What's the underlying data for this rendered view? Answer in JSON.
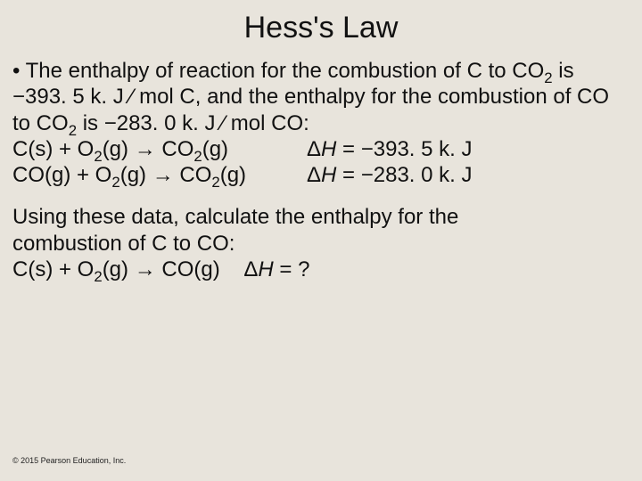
{
  "background_color": "#e8e4dc",
  "text_color": "#111111",
  "font_family": "Arial",
  "title": {
    "text": "Hess's Law",
    "fontsize": 34,
    "align": "center"
  },
  "body_fontsize": 24,
  "bullet_intro": {
    "pre": "• The enthalpy of reaction for the combustion of C to CO",
    "sub1": "2",
    "mid1": " is −393. 5 k. J ⁄ mol C, and the enthalpy for the combustion of CO to CO",
    "sub2": "2",
    "mid2": " is −283. 0 k. J ⁄ mol CO:"
  },
  "eq1": {
    "left": {
      "t1": "C(s) + O",
      "s1": "2",
      "t2": "(g) → CO",
      "s2": "2",
      "t3": "(g)"
    },
    "right": {
      "d": "Δ",
      "h": "H",
      "rest": " = −393. 5 k. J"
    }
  },
  "eq2": {
    "left": {
      "t1": "CO(g) + O",
      "s1": "2",
      "t2": "(g) → CO",
      "s2": "2",
      "t3": "(g)"
    },
    "right": {
      "d": "Δ",
      "h": "H",
      "rest": " = −283. 0 k. J"
    }
  },
  "prompt": {
    "line1": "Using these data, calculate the enthalpy for the",
    "line2": "combustion of C to CO:"
  },
  "eq3": {
    "t1": "C(s) + O",
    "s1": "2",
    "t2": "(g) → CO(g)    ",
    "d": "Δ",
    "h": "H",
    "rest": " = ?"
  },
  "footer": "© 2015 Pearson Education, Inc.",
  "footer_fontsize": 9
}
